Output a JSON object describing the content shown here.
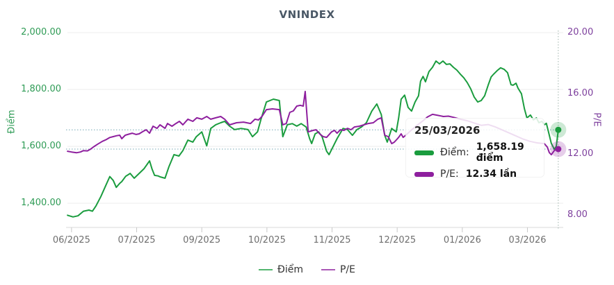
{
  "title": "VNINDEX",
  "chart_data": {
    "type": "line",
    "title": "VNINDEX",
    "grid": "horizontal",
    "legend_position": "bottom-center",
    "background": "#ffffff",
    "crosshair": {
      "date": "25/03/2026",
      "x_fraction": 0.99,
      "line_color": "#9fb3ab",
      "guide_color": "#73a6b3"
    },
    "x_axis": {
      "ticks": [
        {
          "f": 0.011,
          "label": "06/2025"
        },
        {
          "f": 0.142,
          "label": "07/2025"
        },
        {
          "f": 0.273,
          "label": "09/2025"
        },
        {
          "f": 0.404,
          "label": "10/2025"
        },
        {
          "f": 0.535,
          "label": "11/2025"
        },
        {
          "f": 0.666,
          "label": "12/2025"
        },
        {
          "f": 0.797,
          "label": "01/2026"
        },
        {
          "f": 0.928,
          "label": "03/2026"
        }
      ]
    },
    "left_axis": {
      "title": "Điểm",
      "color": "#2e9b55",
      "range": [
        1315,
        2017
      ],
      "ticks": [
        {
          "v": 2000,
          "label": "2,000.00"
        },
        {
          "v": 1800,
          "label": "1,800.00"
        },
        {
          "v": 1600,
          "label": "1,600.00"
        },
        {
          "v": 1400,
          "label": "1,400.00"
        }
      ]
    },
    "right_axis": {
      "title": "P/E",
      "color": "#7d3f9d",
      "range": [
        7.2,
        20.3
      ],
      "ticks": [
        {
          "v": 20,
          "label": "20.00"
        },
        {
          "v": 16,
          "label": "16.00"
        },
        {
          "v": 12,
          "label": "12.00"
        },
        {
          "v": 8,
          "label": "8.00"
        }
      ]
    },
    "series": [
      {
        "name": "Điểm",
        "axis": "left",
        "color": "#1a9c3e",
        "unit": "điểm",
        "last_value": 1658.19,
        "points": [
          [
            0.003,
            1358
          ],
          [
            0.014,
            1352
          ],
          [
            0.024,
            1356
          ],
          [
            0.035,
            1372
          ],
          [
            0.046,
            1376
          ],
          [
            0.053,
            1372
          ],
          [
            0.06,
            1390
          ],
          [
            0.07,
            1424
          ],
          [
            0.08,
            1463
          ],
          [
            0.088,
            1494
          ],
          [
            0.095,
            1480
          ],
          [
            0.101,
            1456
          ],
          [
            0.108,
            1470
          ],
          [
            0.112,
            1476
          ],
          [
            0.12,
            1495
          ],
          [
            0.129,
            1505
          ],
          [
            0.137,
            1488
          ],
          [
            0.147,
            1505
          ],
          [
            0.157,
            1522
          ],
          [
            0.168,
            1549
          ],
          [
            0.173,
            1520
          ],
          [
            0.178,
            1498
          ],
          [
            0.185,
            1496
          ],
          [
            0.189,
            1493
          ],
          [
            0.199,
            1488
          ],
          [
            0.207,
            1529
          ],
          [
            0.217,
            1571
          ],
          [
            0.227,
            1566
          ],
          [
            0.235,
            1585
          ],
          [
            0.245,
            1622
          ],
          [
            0.255,
            1615
          ],
          [
            0.262,
            1634
          ],
          [
            0.273,
            1651
          ],
          [
            0.283,
            1602
          ],
          [
            0.291,
            1663
          ],
          [
            0.301,
            1676
          ],
          [
            0.311,
            1683
          ],
          [
            0.319,
            1688
          ],
          [
            0.329,
            1671
          ],
          [
            0.339,
            1659
          ],
          [
            0.352,
            1663
          ],
          [
            0.366,
            1659
          ],
          [
            0.375,
            1634
          ],
          [
            0.385,
            1651
          ],
          [
            0.392,
            1695
          ],
          [
            0.403,
            1756
          ],
          [
            0.417,
            1766
          ],
          [
            0.429,
            1761
          ],
          [
            0.436,
            1634
          ],
          [
            0.445,
            1676
          ],
          [
            0.455,
            1680
          ],
          [
            0.464,
            1671
          ],
          [
            0.473,
            1680
          ],
          [
            0.483,
            1668
          ],
          [
            0.49,
            1627
          ],
          [
            0.494,
            1610
          ],
          [
            0.501,
            1644
          ],
          [
            0.508,
            1651
          ],
          [
            0.515,
            1634
          ],
          [
            0.524,
            1583
          ],
          [
            0.529,
            1571
          ],
          [
            0.536,
            1595
          ],
          [
            0.545,
            1627
          ],
          [
            0.557,
            1663
          ],
          [
            0.566,
            1659
          ],
          [
            0.576,
            1639
          ],
          [
            0.585,
            1659
          ],
          [
            0.594,
            1668
          ],
          [
            0.604,
            1683
          ],
          [
            0.615,
            1724
          ],
          [
            0.625,
            1749
          ],
          [
            0.634,
            1712
          ],
          [
            0.641,
            1639
          ],
          [
            0.646,
            1615
          ],
          [
            0.655,
            1663
          ],
          [
            0.66,
            1656
          ],
          [
            0.664,
            1651
          ],
          [
            0.669,
            1700
          ],
          [
            0.674,
            1766
          ],
          [
            0.681,
            1780
          ],
          [
            0.688,
            1737
          ],
          [
            0.695,
            1724
          ],
          [
            0.702,
            1756
          ],
          [
            0.709,
            1778
          ],
          [
            0.713,
            1829
          ],
          [
            0.718,
            1846
          ],
          [
            0.723,
            1827
          ],
          [
            0.73,
            1863
          ],
          [
            0.737,
            1878
          ],
          [
            0.744,
            1900
          ],
          [
            0.751,
            1890
          ],
          [
            0.758,
            1900
          ],
          [
            0.765,
            1888
          ],
          [
            0.772,
            1890
          ],
          [
            0.779,
            1878
          ],
          [
            0.786,
            1868
          ],
          [
            0.793,
            1854
          ],
          [
            0.8,
            1841
          ],
          [
            0.807,
            1824
          ],
          [
            0.814,
            1802
          ],
          [
            0.821,
            1773
          ],
          [
            0.828,
            1756
          ],
          [
            0.835,
            1761
          ],
          [
            0.842,
            1778
          ],
          [
            0.849,
            1815
          ],
          [
            0.855,
            1844
          ],
          [
            0.86,
            1854
          ],
          [
            0.867,
            1866
          ],
          [
            0.874,
            1876
          ],
          [
            0.881,
            1871
          ],
          [
            0.888,
            1859
          ],
          [
            0.895,
            1817
          ],
          [
            0.899,
            1815
          ],
          [
            0.905,
            1822
          ],
          [
            0.909,
            1805
          ],
          [
            0.916,
            1785
          ],
          [
            0.922,
            1732
          ],
          [
            0.927,
            1700
          ],
          [
            0.934,
            1710
          ],
          [
            0.94,
            1693
          ],
          [
            0.946,
            1700
          ],
          [
            0.951,
            1683
          ],
          [
            0.957,
            1688
          ],
          [
            0.962,
            1676
          ],
          [
            0.966,
            1681
          ],
          [
            0.971,
            1646
          ],
          [
            0.976,
            1611
          ],
          [
            0.982,
            1590
          ],
          [
            0.986,
            1600
          ],
          [
            0.99,
            1658.19
          ]
        ]
      },
      {
        "name": "P/E",
        "axis": "right",
        "color": "#8e1f9e",
        "unit": "lần",
        "last_value": 12.34,
        "points": [
          [
            0.003,
            12.2
          ],
          [
            0.011,
            12.15
          ],
          [
            0.021,
            12.1
          ],
          [
            0.029,
            12.15
          ],
          [
            0.035,
            12.24
          ],
          [
            0.043,
            12.22
          ],
          [
            0.049,
            12.33
          ],
          [
            0.056,
            12.5
          ],
          [
            0.063,
            12.65
          ],
          [
            0.073,
            12.85
          ],
          [
            0.08,
            12.95
          ],
          [
            0.088,
            13.1
          ],
          [
            0.095,
            13.16
          ],
          [
            0.102,
            13.22
          ],
          [
            0.108,
            13.25
          ],
          [
            0.112,
            13.02
          ],
          [
            0.119,
            13.25
          ],
          [
            0.126,
            13.32
          ],
          [
            0.133,
            13.38
          ],
          [
            0.141,
            13.3
          ],
          [
            0.147,
            13.34
          ],
          [
            0.154,
            13.48
          ],
          [
            0.161,
            13.61
          ],
          [
            0.168,
            13.38
          ],
          [
            0.175,
            13.84
          ],
          [
            0.183,
            13.7
          ],
          [
            0.189,
            13.93
          ],
          [
            0.199,
            13.7
          ],
          [
            0.204,
            14.02
          ],
          [
            0.213,
            13.84
          ],
          [
            0.221,
            14.02
          ],
          [
            0.228,
            14.16
          ],
          [
            0.235,
            13.93
          ],
          [
            0.245,
            14.3
          ],
          [
            0.255,
            14.16
          ],
          [
            0.263,
            14.39
          ],
          [
            0.273,
            14.3
          ],
          [
            0.283,
            14.48
          ],
          [
            0.291,
            14.3
          ],
          [
            0.301,
            14.39
          ],
          [
            0.311,
            14.48
          ],
          [
            0.319,
            14.3
          ],
          [
            0.329,
            13.93
          ],
          [
            0.343,
            14.07
          ],
          [
            0.357,
            14.11
          ],
          [
            0.371,
            14.02
          ],
          [
            0.38,
            14.3
          ],
          [
            0.387,
            14.25
          ],
          [
            0.394,
            14.48
          ],
          [
            0.403,
            14.93
          ],
          [
            0.415,
            14.98
          ],
          [
            0.429,
            14.93
          ],
          [
            0.436,
            13.93
          ],
          [
            0.443,
            14.02
          ],
          [
            0.45,
            14.75
          ],
          [
            0.457,
            14.84
          ],
          [
            0.464,
            15.16
          ],
          [
            0.471,
            15.21
          ],
          [
            0.477,
            15.16
          ],
          [
            0.481,
            16.12
          ],
          [
            0.487,
            13.47
          ],
          [
            0.497,
            13.57
          ],
          [
            0.503,
            13.61
          ],
          [
            0.51,
            13.34
          ],
          [
            0.517,
            13.16
          ],
          [
            0.524,
            13.11
          ],
          [
            0.534,
            13.47
          ],
          [
            0.54,
            13.57
          ],
          [
            0.545,
            13.38
          ],
          [
            0.552,
            13.61
          ],
          [
            0.559,
            13.57
          ],
          [
            0.566,
            13.7
          ],
          [
            0.573,
            13.61
          ],
          [
            0.58,
            13.79
          ],
          [
            0.59,
            13.84
          ],
          [
            0.599,
            13.93
          ],
          [
            0.608,
            14.02
          ],
          [
            0.618,
            14.07
          ],
          [
            0.627,
            14.3
          ],
          [
            0.634,
            14.39
          ],
          [
            0.641,
            13.25
          ],
          [
            0.648,
            13.16
          ],
          [
            0.655,
            12.7
          ],
          [
            0.66,
            12.79
          ],
          [
            0.664,
            12.93
          ],
          [
            0.669,
            13.11
          ],
          [
            0.674,
            13.34
          ],
          [
            0.678,
            13.11
          ],
          [
            0.685,
            13.3
          ],
          [
            0.695,
            13.6
          ],
          [
            0.706,
            13.9
          ],
          [
            0.718,
            14.2
          ],
          [
            0.727,
            14.45
          ],
          [
            0.737,
            14.62
          ],
          [
            0.748,
            14.55
          ],
          [
            0.759,
            14.48
          ],
          [
            0.769,
            14.5
          ],
          [
            0.78,
            14.42
          ],
          [
            0.793,
            14.3
          ],
          [
            0.807,
            14.2
          ],
          [
            0.821,
            14.05
          ],
          [
            0.835,
            13.9
          ],
          [
            0.849,
            13.95
          ],
          [
            0.863,
            13.8
          ],
          [
            0.877,
            13.6
          ],
          [
            0.891,
            13.4
          ],
          [
            0.905,
            13.2
          ],
          [
            0.919,
            13.0
          ],
          [
            0.933,
            12.85
          ],
          [
            0.947,
            12.75
          ],
          [
            0.962,
            12.7
          ],
          [
            0.968,
            12.47
          ],
          [
            0.972,
            12.11
          ],
          [
            0.976,
            11.97
          ],
          [
            0.982,
            12.24
          ],
          [
            0.986,
            12.33
          ],
          [
            0.99,
            12.34
          ]
        ]
      }
    ]
  },
  "tooltip": {
    "date": "25/03/2026",
    "rows": [
      {
        "label": "Điểm:",
        "value": "1,658.19 điểm",
        "color": "#1a9c3e"
      },
      {
        "label": "P/E:",
        "value": "12.34 lần",
        "color": "#8e1f9e"
      }
    ]
  },
  "legend": {
    "items": [
      {
        "label": "Điểm",
        "color": "#1a9c3e"
      },
      {
        "label": "P/E",
        "color": "#8e1f9e"
      }
    ]
  }
}
